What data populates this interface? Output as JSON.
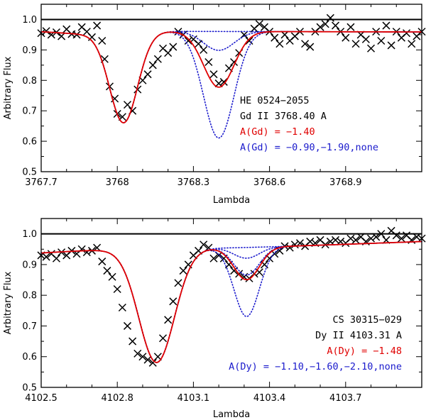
{
  "colors": {
    "data": "#000000",
    "best_fit": "#e00000",
    "alt_fits": "#1a1acc",
    "continuum": "#000000"
  },
  "chart_data": [
    {
      "type": "line",
      "panel": "top",
      "xlabel": "Lambda",
      "ylabel": "Arbitrary Flux",
      "xlim": [
        3767.7,
        3769.2
      ],
      "ylim": [
        0.5,
        1.05
      ],
      "xticks": [
        3767.7,
        3768,
        3768.3,
        3768.6,
        3768.9
      ],
      "xtick_labels": [
        "3767.7",
        "3768",
        "3768.3",
        "3768.6",
        "3768.9"
      ],
      "yticks": [
        0.5,
        0.6,
        0.7,
        0.8,
        0.9,
        1.0
      ],
      "ytick_labels": [
        "0.5",
        "0.6",
        "0.7",
        "0.8",
        "0.9",
        "1.0"
      ],
      "continuum_level": 1.0,
      "annotations": {
        "star": "HE 0524−2055",
        "line": "Gd II 3768.40 A",
        "best": "A(Gd) = −1.40",
        "alts": "A(Gd) = −0.90,−1.90,none"
      },
      "model": {
        "base": 0.962,
        "slope": -0.002,
        "wing": [
          {
            "center": 3767.9,
            "depth": 0.01,
            "sigma": 0.12
          }
        ],
        "strong_line": {
          "center": 3768.025,
          "depth": 0.295,
          "sigma": 0.055
        },
        "element_line": {
          "center": 3768.4,
          "sigma": 0.06
        },
        "best_depth": 0.183,
        "alt_depths": [
          0.35,
          0.062,
          0.0
        ]
      },
      "series": [
        {
          "name": "observed",
          "marker": "x",
          "x": [
            3767.7,
            3767.72,
            3767.74,
            3767.76,
            3767.78,
            3767.8,
            3767.82,
            3767.84,
            3767.86,
            3767.88,
            3767.9,
            3767.92,
            3767.94,
            3767.95,
            3767.97,
            3767.99,
            3768.0,
            3768.02,
            3768.04,
            3768.06,
            3768.08,
            3768.1,
            3768.12,
            3768.14,
            3768.16,
            3768.18,
            3768.2,
            3768.22,
            3768.24,
            3768.26,
            3768.28,
            3768.3,
            3768.32,
            3768.34,
            3768.36,
            3768.38,
            3768.4,
            3768.42,
            3768.44,
            3768.46,
            3768.48,
            3768.5,
            3768.52,
            3768.54,
            3768.56,
            3768.58,
            3768.6,
            3768.62,
            3768.64,
            3768.66,
            3768.68,
            3768.7,
            3768.72,
            3768.74,
            3768.76,
            3768.78,
            3768.8,
            3768.82,
            3768.84,
            3768.86,
            3768.88,
            3768.9,
            3768.92,
            3768.94,
            3768.96,
            3768.98,
            3769.0,
            3769.02,
            3769.04,
            3769.06,
            3769.08,
            3769.1,
            3769.12,
            3769.14,
            3769.16,
            3769.18,
            3769.2
          ],
          "y": [
            0.955,
            0.962,
            0.95,
            0.958,
            0.945,
            0.968,
            0.952,
            0.95,
            0.975,
            0.96,
            0.942,
            0.98,
            0.93,
            0.87,
            0.78,
            0.74,
            0.69,
            0.68,
            0.72,
            0.7,
            0.77,
            0.8,
            0.82,
            0.85,
            0.87,
            0.905,
            0.89,
            0.91,
            0.96,
            0.95,
            0.93,
            0.935,
            0.92,
            0.9,
            0.86,
            0.82,
            0.79,
            0.795,
            0.84,
            0.86,
            0.89,
            0.95,
            0.93,
            0.97,
            0.985,
            0.975,
            0.96,
            0.94,
            0.92,
            0.95,
            0.93,
            0.945,
            0.96,
            0.92,
            0.91,
            0.96,
            0.975,
            0.985,
            1.005,
            0.98,
            0.96,
            0.94,
            0.975,
            0.92,
            0.95,
            0.935,
            0.905,
            0.96,
            0.93,
            0.98,
            0.915,
            0.96,
            0.94,
            0.955,
            0.92,
            0.945,
            0.96
          ]
        }
      ]
    },
    {
      "type": "line",
      "panel": "bottom",
      "xlabel": "Lambda",
      "ylabel": "Arbitrary Flux",
      "xlim": [
        4102.5,
        4104.0
      ],
      "ylim": [
        0.5,
        1.05
      ],
      "xticks": [
        4102.5,
        4102.8,
        4103.1,
        4103.4,
        4103.7
      ],
      "xtick_labels": [
        "4102.5",
        "4102.8",
        "4103.1",
        "4103.4",
        "4103.7"
      ],
      "yticks": [
        0.5,
        0.6,
        0.7,
        0.8,
        0.9,
        1.0
      ],
      "ytick_labels": [
        "0.5",
        "0.6",
        "0.7",
        "0.8",
        "0.9",
        "1.0"
      ],
      "continuum_level": 1.0,
      "annotations": {
        "star": "CS 30315−029",
        "line": "Dy II 4103.31 A",
        "best": "A(Dy) = −1.48",
        "alts": "A(Dy) = −1.10,−1.60,−2.10,none"
      },
      "model": {
        "base": 0.93,
        "slope": 0.03,
        "wing": [
          {
            "center": 4102.72,
            "depth": -0.01,
            "sigma": 0.3
          }
        ],
        "strong_line": {
          "center": 4102.955,
          "depth": 0.37,
          "sigma": 0.07
        },
        "element_line": {
          "center": 4103.31,
          "sigma": 0.05
        },
        "best_depth": 0.105,
        "alt_depths": [
          0.225,
          0.09,
          0.035,
          0.0
        ]
      },
      "series": [
        {
          "name": "observed",
          "marker": "x",
          "x": [
            4102.5,
            4102.52,
            4102.54,
            4102.56,
            4102.58,
            4102.6,
            4102.62,
            4102.64,
            4102.66,
            4102.68,
            4102.7,
            4102.72,
            4102.74,
            4102.76,
            4102.78,
            4102.8,
            4102.82,
            4102.84,
            4102.86,
            4102.88,
            4102.9,
            4102.92,
            4102.94,
            4102.96,
            4102.98,
            4103.0,
            4103.02,
            4103.04,
            4103.06,
            4103.08,
            4103.1,
            4103.12,
            4103.14,
            4103.16,
            4103.18,
            4103.2,
            4103.22,
            4103.24,
            4103.26,
            4103.28,
            4103.3,
            4103.32,
            4103.34,
            4103.36,
            4103.38,
            4103.4,
            4103.42,
            4103.44,
            4103.46,
            4103.48,
            4103.5,
            4103.52,
            4103.54,
            4103.56,
            4103.58,
            4103.6,
            4103.62,
            4103.64,
            4103.66,
            4103.68,
            4103.7,
            4103.72,
            4103.74,
            4103.76,
            4103.78,
            4103.8,
            4103.82,
            4103.84,
            4103.86,
            4103.88,
            4103.9,
            4103.92,
            4103.94,
            4103.96,
            4103.98,
            4104.0
          ],
          "y": [
            0.93,
            0.925,
            0.935,
            0.92,
            0.94,
            0.93,
            0.945,
            0.935,
            0.95,
            0.94,
            0.945,
            0.955,
            0.91,
            0.88,
            0.86,
            0.82,
            0.76,
            0.7,
            0.65,
            0.61,
            0.6,
            0.59,
            0.58,
            0.6,
            0.66,
            0.72,
            0.78,
            0.84,
            0.88,
            0.9,
            0.93,
            0.945,
            0.965,
            0.955,
            0.92,
            0.93,
            0.92,
            0.9,
            0.88,
            0.87,
            0.86,
            0.855,
            0.87,
            0.875,
            0.9,
            0.92,
            0.935,
            0.945,
            0.96,
            0.955,
            0.965,
            0.97,
            0.96,
            0.975,
            0.97,
            0.98,
            0.965,
            0.975,
            0.98,
            0.975,
            0.97,
            0.985,
            0.98,
            0.99,
            0.975,
            0.985,
            0.99,
            1.0,
            0.98,
            1.01,
            0.995,
            0.985,
            0.995,
            0.98,
            0.99,
            0.985
          ]
        }
      ]
    }
  ]
}
